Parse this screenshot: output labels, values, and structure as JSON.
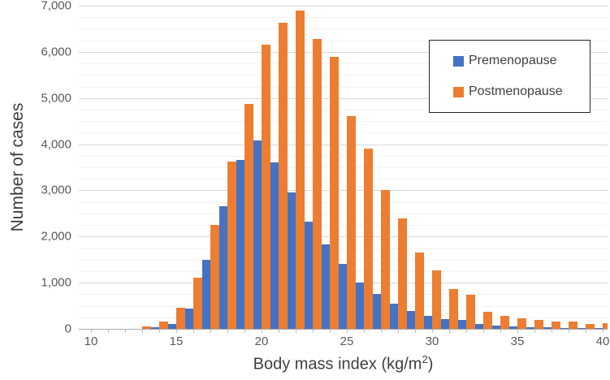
{
  "chart_data": {
    "type": "bar",
    "title": "",
    "ylabel": "Number of cases",
    "xlabel": "Body mass index (kg/m²)",
    "xlabel_parts": {
      "prefix": "Body mass index (kg/m",
      "sup": "2",
      "suffix": ")"
    },
    "x": [
      13,
      14,
      15,
      16,
      17,
      18,
      19,
      20,
      21,
      22,
      23,
      24,
      25,
      26,
      27,
      28,
      29,
      30,
      31,
      32,
      33,
      34,
      35,
      36,
      37,
      38,
      39,
      40
    ],
    "series": [
      {
        "name": "Premenopause",
        "color": "#4472C4",
        "values": [
          0,
          30,
          100,
          440,
          1500,
          2650,
          3650,
          4080,
          3600,
          2960,
          2320,
          1830,
          1410,
          1010,
          750,
          550,
          390,
          290,
          215,
          185,
          105,
          65,
          55,
          40,
          30,
          20,
          15,
          10
        ]
      },
      {
        "name": "Postmenopause",
        "color": "#ED7D31",
        "values": [
          50,
          150,
          460,
          1100,
          2250,
          3620,
          4880,
          6150,
          6630,
          6900,
          6280,
          5890,
          4600,
          3900,
          3000,
          2390,
          1660,
          1260,
          860,
          745,
          375,
          285,
          235,
          190,
          160,
          150,
          110,
          130
        ]
      }
    ],
    "xlim": [
      9.3,
      40.5
    ],
    "ylim": [
      0,
      7000
    ],
    "y_major_step": 1000,
    "y_minor_step": 250,
    "x_tick_labels": [
      "10",
      "15",
      "20",
      "25",
      "30",
      "35",
      "40"
    ],
    "y_tick_labels": [
      "0",
      "1,000",
      "2,000",
      "3,000",
      "4,000",
      "5,000",
      "6,000",
      "7,000"
    ],
    "legend_position": "upper-right",
    "grid": "horizontal-major-and-minor",
    "colors": {
      "premenopause": "#4472C4",
      "postmenopause": "#ED7D31",
      "tick_text": "#595959",
      "axis_title_text": "#3F3F3F",
      "grid_major": "#D9D9D9",
      "grid_minor": "#F2F2F2",
      "axis_line": "#ABABAB",
      "legend_border": "#262626"
    }
  }
}
